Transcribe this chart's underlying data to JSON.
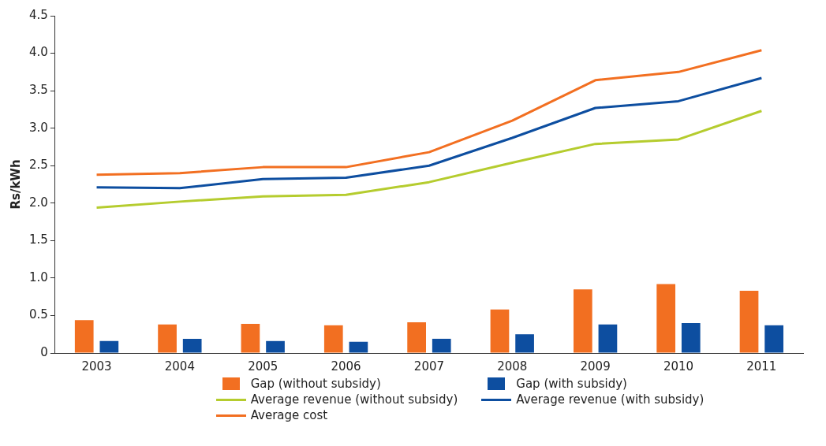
{
  "chart_data": {
    "type": "bar",
    "ylabel": "Rs/kWh",
    "categories": [
      "2003",
      "2004",
      "2005",
      "2006",
      "2007",
      "2008",
      "2009",
      "2010",
      "2011"
    ],
    "series": [
      {
        "name": "Gap (without subsidy)",
        "color": "#f26f21",
        "values": [
          0.44,
          0.38,
          0.39,
          0.37,
          0.41,
          0.58,
          0.85,
          0.92,
          0.83
        ]
      },
      {
        "name": "Gap (with subsidy)",
        "color": "#0d4ea0",
        "values": [
          0.16,
          0.19,
          0.16,
          0.15,
          0.19,
          0.25,
          0.38,
          0.4,
          0.37
        ]
      },
      {
        "name": "Average revenue (without subsidy)",
        "type": "line",
        "color": "#b5cc2e",
        "values": [
          1.94,
          2.02,
          2.09,
          2.11,
          2.28,
          2.54,
          2.79,
          2.85,
          3.23
        ]
      },
      {
        "name": "Average revenue (with subsidy)",
        "type": "line",
        "color": "#0d4ea0",
        "values": [
          2.21,
          2.2,
          2.32,
          2.34,
          2.5,
          2.87,
          3.27,
          3.36,
          3.67
        ]
      },
      {
        "name": "Average cost",
        "type": "line",
        "color": "#f26f21",
        "values": [
          2.38,
          2.4,
          2.48,
          2.48,
          2.68,
          3.1,
          3.64,
          3.75,
          4.04
        ]
      }
    ],
    "ylim": [
      0,
      4.5
    ],
    "yticks": [
      0,
      0.5,
      {
        "value": 1,
        "label": "1.0"
      },
      1.5,
      {
        "value": 2,
        "label": "2.0"
      },
      2.5,
      {
        "value": 3,
        "label": "3.0"
      },
      3.5,
      {
        "value": 4,
        "label": "4.0"
      },
      4.5
    ],
    "grid": false,
    "legend": "bottom",
    "marker": "none",
    "line_style": "solid"
  }
}
